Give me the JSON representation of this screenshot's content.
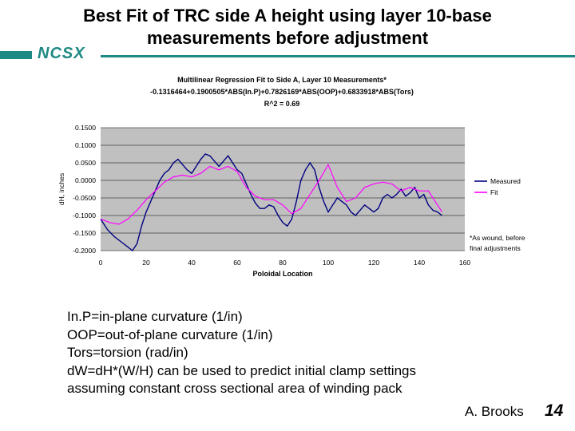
{
  "slide": {
    "title_line1": "Best Fit of TRC side A height using layer 10-base",
    "title_line2": "measurements before adjustment",
    "logo_text": "NCSX",
    "notes": [
      "In.P=in-plane curvature (1/in)",
      "OOP=out-of-plane curvature (1/in)",
      "Tors=torsion (rad/in)",
      "dW=dH*(W/H) can be used to predict initial clamp settings",
      "assuming constant cross sectional area of winding pack"
    ],
    "author": "A. Brooks",
    "page_number": "14",
    "colors": {
      "accent": "#1f8a83",
      "plot_bg": "#c0c0c0",
      "measured": "#000080",
      "fit": "#ff00ff"
    }
  },
  "chart_data": {
    "type": "line",
    "title_lines": [
      "Multilinear Regression Fit to Side A, Layer 10 Measurements*",
      "-0.1316464+0.1900505*ABS(In.P)+0.7826169*ABS(OOP)+0.6833918*ABS(Tors)",
      "R^2 = 0.69"
    ],
    "xlabel": "Poloidal Location",
    "ylabel": "dH, inches",
    "xlim": [
      0,
      160
    ],
    "ylim": [
      -0.2,
      0.15
    ],
    "y_ticks": [
      "0.1500",
      "0.1000",
      "0.0500",
      "0.0000",
      "-0.0500",
      "-0.1000",
      "-0.1500",
      "-0.2000"
    ],
    "x_ticks": [
      "0",
      "20",
      "40",
      "60",
      "80",
      "100",
      "120",
      "140",
      "160"
    ],
    "legend_position": "right",
    "footnote_lines": [
      "*As wound, before",
      "final adjustments"
    ],
    "series": [
      {
        "name": "Measured",
        "x": [
          0,
          3,
          6,
          9,
          12,
          14,
          16,
          18,
          20,
          22,
          24,
          26,
          28,
          30,
          32,
          34,
          36,
          38,
          40,
          42,
          44,
          46,
          48,
          50,
          52,
          54,
          56,
          58,
          60,
          62,
          64,
          66,
          68,
          70,
          72,
          74,
          76,
          78,
          80,
          82,
          84,
          86,
          88,
          90,
          92,
          94,
          96,
          98,
          100,
          102,
          104,
          106,
          108,
          110,
          112,
          114,
          116,
          118,
          120,
          122,
          124,
          126,
          128,
          130,
          132,
          134,
          136,
          138,
          140,
          142,
          144,
          146,
          148,
          150
        ],
        "y": [
          -0.11,
          -0.14,
          -0.16,
          -0.175,
          -0.19,
          -0.2,
          -0.18,
          -0.13,
          -0.09,
          -0.06,
          -0.03,
          0.0,
          0.02,
          0.03,
          0.05,
          0.06,
          0.045,
          0.03,
          0.02,
          0.04,
          0.06,
          0.075,
          0.07,
          0.055,
          0.04,
          0.055,
          0.07,
          0.05,
          0.03,
          0.02,
          -0.01,
          -0.04,
          -0.065,
          -0.08,
          -0.08,
          -0.07,
          -0.075,
          -0.1,
          -0.12,
          -0.13,
          -0.11,
          -0.06,
          0.0,
          0.03,
          0.05,
          0.03,
          -0.02,
          -0.06,
          -0.09,
          -0.07,
          -0.05,
          -0.06,
          -0.07,
          -0.09,
          -0.1,
          -0.085,
          -0.07,
          -0.08,
          -0.09,
          -0.08,
          -0.05,
          -0.04,
          -0.05,
          -0.04,
          -0.025,
          -0.045,
          -0.035,
          -0.02,
          -0.05,
          -0.04,
          -0.07,
          -0.085,
          -0.09,
          -0.1
        ]
      },
      {
        "name": "Fit",
        "x": [
          0,
          4,
          8,
          12,
          16,
          20,
          24,
          28,
          32,
          36,
          40,
          44,
          48,
          52,
          56,
          60,
          64,
          68,
          72,
          76,
          80,
          84,
          88,
          92,
          96,
          100,
          104,
          108,
          112,
          116,
          120,
          124,
          128,
          132,
          136,
          140,
          144,
          148,
          150
        ],
        "y": [
          -0.11,
          -0.12,
          -0.125,
          -0.11,
          -0.085,
          -0.055,
          -0.03,
          -0.005,
          0.01,
          0.015,
          0.01,
          0.02,
          0.04,
          0.03,
          0.04,
          0.025,
          -0.02,
          -0.045,
          -0.055,
          -0.055,
          -0.07,
          -0.095,
          -0.08,
          -0.04,
          0.0,
          0.045,
          -0.02,
          -0.06,
          -0.05,
          -0.02,
          -0.01,
          -0.005,
          -0.01,
          -0.03,
          -0.02,
          -0.03,
          -0.03,
          -0.07,
          -0.09
        ]
      }
    ]
  }
}
